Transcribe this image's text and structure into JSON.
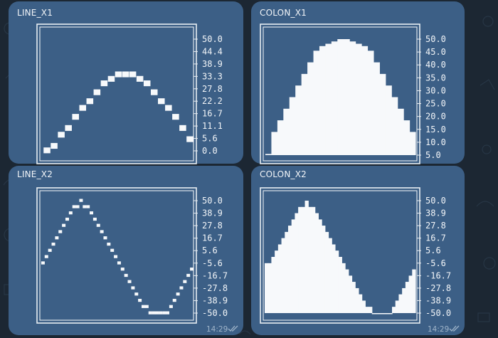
{
  "messages": [
    {
      "time": "",
      "has_checks": false
    },
    {
      "time": "",
      "has_checks": false
    },
    {
      "time": "14:29",
      "has_checks": true
    },
    {
      "time": "14:29",
      "has_checks": true
    }
  ],
  "colors": {
    "background": "#1c2733",
    "bubble": "#3c5f86",
    "foreground": "#f7f9fb",
    "time": "#9fb4c9"
  },
  "chart_data": [
    {
      "type": "scatter",
      "title": "LINE_X1",
      "x": [
        0,
        1,
        2,
        3,
        4,
        5,
        6,
        7,
        8,
        9,
        10,
        11,
        12,
        13,
        14,
        15,
        16,
        17,
        18,
        19,
        20
      ],
      "values": [
        0,
        2,
        7,
        10,
        15,
        19,
        22,
        26,
        30,
        32,
        34,
        34,
        34,
        32,
        30,
        26,
        22,
        19,
        15,
        10,
        5
      ],
      "y_ticks": [
        "50.0",
        "44.4",
        "38.9",
        "33.3",
        "27.8",
        "22.2",
        "16.7",
        "11.1",
        "5.6",
        "0.0"
      ],
      "ylim": [
        0,
        50
      ]
    },
    {
      "type": "bar",
      "title": "COLON_X1",
      "values": [
        0.5,
        10,
        15,
        20,
        25,
        30,
        35,
        40,
        45,
        47,
        48,
        49,
        50,
        50,
        49,
        48,
        47,
        45,
        40,
        35,
        30,
        25,
        20,
        15,
        10
      ],
      "y_ticks": [
        "50.0",
        "45.0",
        "40.0",
        "35.0",
        "30.0",
        "25.0",
        "20.0",
        "15.0",
        "10.0",
        "5.0"
      ],
      "ylim": [
        0,
        50
      ]
    },
    {
      "type": "scatter",
      "title": "LINE_X2",
      "values": [
        -5.6,
        0,
        5.6,
        11.1,
        16.7,
        22.2,
        27.8,
        33.3,
        38.9,
        44.4,
        44.4,
        50,
        44.4,
        44.4,
        38.9,
        33.3,
        27.8,
        22.2,
        16.7,
        11.1,
        5.6,
        0,
        -5.6,
        -11.1,
        -16.7,
        -22.2,
        -27.8,
        -33.3,
        -38.9,
        -44.4,
        -44.4,
        -50,
        -50,
        -50,
        -50,
        -50,
        -50,
        -44.4,
        -38.9,
        -33.3,
        -27.8,
        -22.2,
        -16.7,
        -11.1
      ],
      "y_ticks": [
        "50.0",
        "38.9",
        "27.8",
        "16.7",
        "5.6",
        "-5.6",
        "-16.7",
        "-27.8",
        "-38.9",
        "-50.0"
      ],
      "ylim": [
        -50,
        50
      ]
    },
    {
      "type": "bar",
      "title": "COLON_X2",
      "values": [
        -5.6,
        -5.6,
        0,
        5.6,
        11.1,
        16.7,
        22.2,
        27.8,
        33.3,
        38.9,
        44.4,
        44.4,
        50,
        44.4,
        44.4,
        38.9,
        33.3,
        27.8,
        22.2,
        16.7,
        11.1,
        5.6,
        0,
        -5.6,
        -11.1,
        -16.7,
        -22.2,
        -27.8,
        -33.3,
        -38.9,
        -44.4,
        -44.4,
        -50,
        -50,
        -50,
        -50,
        -50,
        -50,
        -44.4,
        -38.9,
        -33.3,
        -27.8,
        -22.2,
        -16.7,
        -11.1
      ],
      "y_ticks": [
        "50.0",
        "38.9",
        "27.8",
        "16.7",
        "5.6",
        "-5.6",
        "-16.7",
        "-27.8",
        "-38.9",
        "-50.0"
      ],
      "ylim": [
        -50,
        50
      ]
    }
  ]
}
